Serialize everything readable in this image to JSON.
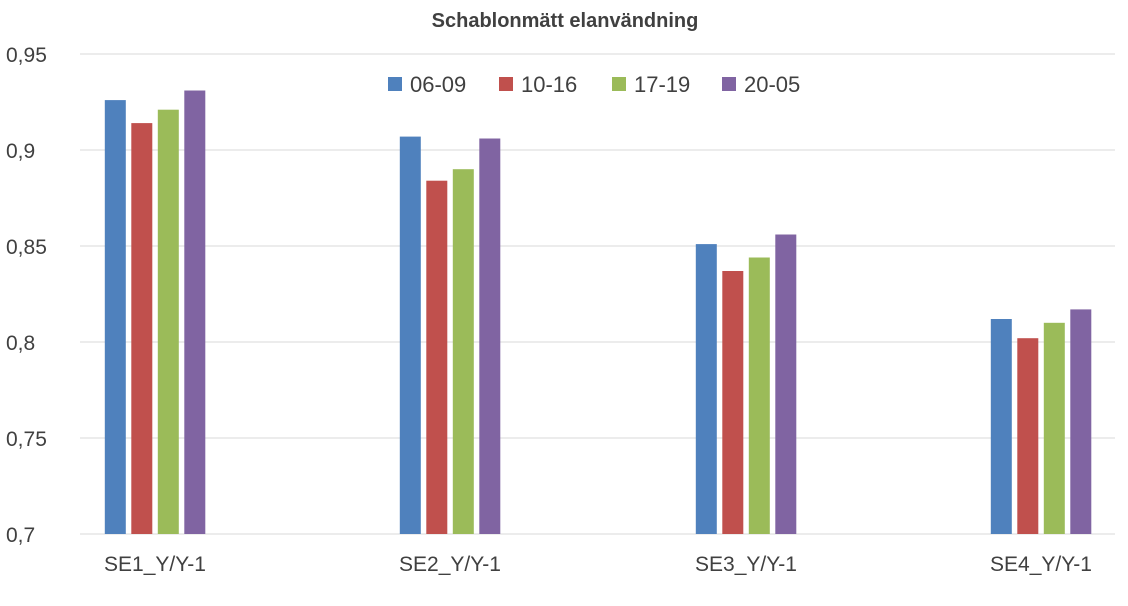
{
  "chart_data": {
    "type": "bar",
    "title": "Schablonmätt elanvändning",
    "xlabel": "",
    "ylabel": "",
    "categories": [
      "SE1_Y/Y-1",
      "SE2_Y/Y-1",
      "SE3_Y/Y-1",
      "SE4_Y/Y-1"
    ],
    "series": [
      {
        "name": "06-09",
        "color": "#4f81bd",
        "values": [
          0.926,
          0.907,
          0.851,
          0.812
        ]
      },
      {
        "name": "10-16",
        "color": "#c0504d",
        "values": [
          0.914,
          0.884,
          0.837,
          0.802
        ]
      },
      {
        "name": "17-19",
        "color": "#9bbb59",
        "values": [
          0.921,
          0.89,
          0.844,
          0.81
        ]
      },
      {
        "name": "20-05",
        "color": "#8064a2",
        "values": [
          0.931,
          0.906,
          0.856,
          0.817
        ]
      }
    ],
    "ylim": [
      0.7,
      0.95
    ],
    "yticks": [
      "0,7",
      "0,75",
      "0,8",
      "0,85",
      "0,9",
      "0,95"
    ],
    "grid": true,
    "legend_position": "top-center"
  }
}
